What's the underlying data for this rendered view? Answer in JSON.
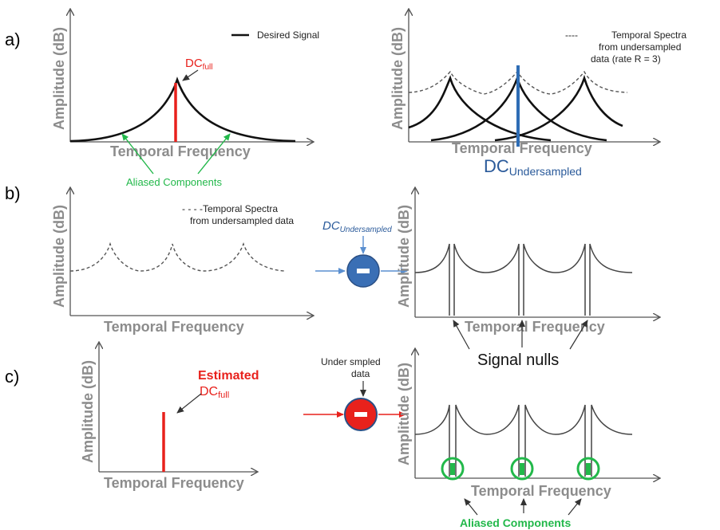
{
  "panels": {
    "a": "a)",
    "b": "b)",
    "c": "c)"
  },
  "axes": {
    "y": "Amplitude (dB)",
    "x": "Temporal Frequency"
  },
  "a_left": {
    "legend": "Desired Signal",
    "dc_main": "DC",
    "dc_sub": "full",
    "aliased": "Aliased Components"
  },
  "a_right": {
    "legend_dash": "----",
    "legend_line1": "Temporal Spectra",
    "legend_line2": "from undersampled",
    "legend_line3": "data  (rate R = 3)",
    "dc_main": "DC",
    "dc_sub": "Undersampled"
  },
  "b_left": {
    "legend_line1": "- - - -Temporal Spectra",
    "legend_line2": "from undersampled data"
  },
  "b_mid": {
    "dc_main": "DC",
    "dc_sub": "Undersampled",
    "op": "-"
  },
  "b_right": {
    "signal_nulls": "Signal nulls"
  },
  "c_left": {
    "est_line1": "Estimated",
    "dc_main": "DC",
    "dc_sub": "full"
  },
  "c_mid": {
    "label_line1": "Under smpled",
    "label_line2": "data",
    "op": "-"
  },
  "c_right": {
    "aliased": "Aliased Components"
  },
  "colors": {
    "red": "#e8211c",
    "green": "#22b84a",
    "blue": "#2e6db5",
    "axis": "#555555"
  }
}
